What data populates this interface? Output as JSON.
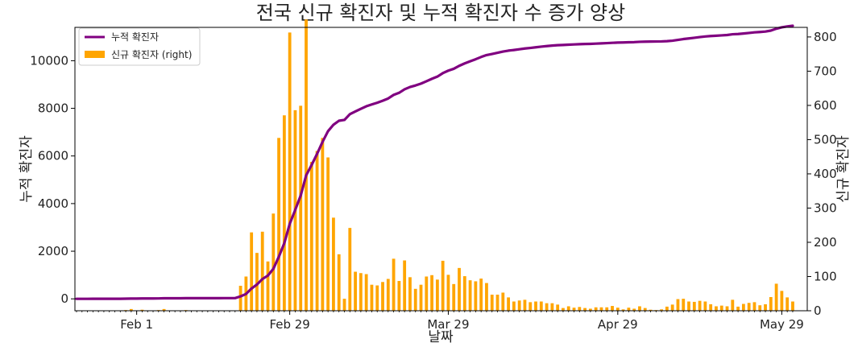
{
  "chart_data": {
    "type": "bar+line",
    "title": "전국 신규 확진자 및 누적 확진자 수 증가 양상",
    "xlabel": "날짜",
    "ylabel_left": "누적 확진자",
    "ylabel_right": "신규 확진자",
    "left_ylim": [
      -500,
      11400
    ],
    "right_ylim": [
      0,
      828
    ],
    "left_yticks": [
      "0",
      "2000",
      "4000",
      "6000",
      "8000",
      "10000"
    ],
    "right_yticks": [
      "0",
      "100",
      "200",
      "300",
      "400",
      "500",
      "600",
      "700",
      "800"
    ],
    "x_ticks": [
      "Feb 1",
      "Feb 29",
      "Mar 29",
      "Apr 29",
      "May 29"
    ],
    "x_tick_days": [
      11,
      39,
      68,
      99,
      129
    ],
    "x_start": "2020-01-21",
    "x_end": "2020-05-31",
    "legend": {
      "position": "top-left",
      "entries": [
        {
          "label": "누적 확진자",
          "color": "#800080",
          "kind": "line"
        },
        {
          "label": "신규 확진자 (right)",
          "color": "#FFA500",
          "kind": "bar"
        }
      ]
    },
    "series": [
      {
        "name": "누적 확진자",
        "axis": "left",
        "color": "#800080",
        "type": "line",
        "values": [
          1,
          1,
          1,
          2,
          2,
          3,
          4,
          4,
          4,
          6,
          11,
          12,
          15,
          15,
          16,
          18,
          23,
          24,
          24,
          25,
          27,
          28,
          28,
          28,
          28,
          28,
          29,
          30,
          31,
          31,
          104,
          204,
          433,
          602,
          833,
          977,
          1261,
          1766,
          2337,
          3150,
          3736,
          4335,
          5186,
          5621,
          6088,
          6593,
          7041,
          7313,
          7478,
          7513,
          7755,
          7869,
          7979,
          8086,
          8162,
          8236,
          8320,
          8413,
          8565,
          8652,
          8799,
          8897,
          8961,
          9037,
          9137,
          9241,
          9332,
          9478,
          9583,
          9661,
          9786,
          9887,
          9976,
          10062,
          10156,
          10237,
          10284,
          10331,
          10384,
          10423,
          10450,
          10480,
          10512,
          10537,
          10564,
          10591,
          10613,
          10635,
          10653,
          10661,
          10674,
          10683,
          10694,
          10702,
          10708,
          10718,
          10728,
          10738,
          10752,
          10761,
          10765,
          10774,
          10780,
          10793,
          10801,
          10804,
          10806,
          10810,
          10822,
          10840,
          10874,
          10909,
          10936,
          10962,
          10991,
          11018,
          11037,
          11050,
          11065,
          11078,
          11110,
          11122,
          11142,
          11165,
          11190,
          11206,
          11225,
          11265,
          11344,
          11402,
          11441,
          11468
        ]
      },
      {
        "name": "신규 확진자",
        "axis": "right",
        "color": "#FFA500",
        "type": "bar",
        "values": [
          1,
          0,
          0,
          1,
          0,
          1,
          1,
          0,
          0,
          2,
          5,
          1,
          3,
          0,
          1,
          2,
          5,
          1,
          0,
          1,
          2,
          1,
          0,
          0,
          0,
          0,
          1,
          1,
          1,
          0,
          73,
          100,
          229,
          169,
          231,
          144,
          284,
          505,
          571,
          813,
          586,
          599,
          851,
          435,
          467,
          505,
          448,
          272,
          165,
          35,
          242,
          114,
          110,
          107,
          76,
          74,
          84,
          93,
          152,
          87,
          147,
          98,
          64,
          76,
          100,
          104,
          91,
          146,
          105,
          78,
          125,
          101,
          89,
          86,
          94,
          81,
          47,
          47,
          53,
          39,
          27,
          30,
          32,
          25,
          27,
          27,
          22,
          22,
          18,
          8,
          13,
          9,
          11,
          8,
          6,
          10,
          10,
          10,
          14,
          9,
          4,
          9,
          6,
          13,
          8,
          3,
          2,
          4,
          12,
          18,
          34,
          35,
          27,
          26,
          29,
          27,
          19,
          13,
          15,
          13,
          32,
          12,
          20,
          23,
          25,
          16,
          19,
          40,
          79,
          58,
          39,
          27
        ]
      }
    ]
  }
}
